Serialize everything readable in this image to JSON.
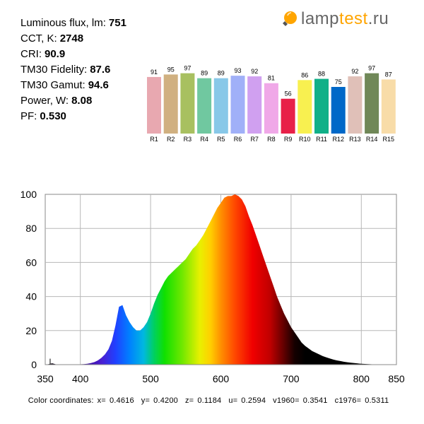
{
  "params": [
    {
      "label": "Luminous flux, lm:",
      "value": "751"
    },
    {
      "label": "CCT, K:",
      "value": "2748"
    },
    {
      "label": "CRI:",
      "value": "90.9"
    },
    {
      "label": "TM30 Fidelity:",
      "value": "87.6"
    },
    {
      "label": "TM30 Gamut:",
      "value": "94.6"
    },
    {
      "label": "Power, W:",
      "value": "8.08"
    },
    {
      "label": "PF:",
      "value": "0.530"
    }
  ],
  "logo": {
    "text_a": "lamp",
    "text_b": "test",
    "text_c": ".ru",
    "icon": "lightbulb-icon",
    "colors": {
      "accent": "#ffa500",
      "text": "#666666"
    }
  },
  "chart_data": [
    {
      "type": "bar",
      "categories": [
        "R1",
        "R2",
        "R3",
        "R4",
        "R5",
        "R6",
        "R7",
        "R8",
        "R9",
        "R10",
        "R11",
        "R12",
        "R13",
        "R14",
        "R15"
      ],
      "values": [
        91,
        95,
        97,
        89,
        89,
        93,
        92,
        81,
        56,
        86,
        88,
        75,
        92,
        97,
        87
      ],
      "colors": [
        "#e8a8b0",
        "#d0b080",
        "#a8c060",
        "#70c8a0",
        "#88c8e8",
        "#a0b0f8",
        "#d0a0f0",
        "#f0a8e8",
        "#e82048",
        "#f8f050",
        "#10b088",
        "#0068c8",
        "#e0c0b8",
        "#708858",
        "#f8dca8"
      ],
      "ylim": [
        0,
        100
      ],
      "data_labels": true
    },
    {
      "type": "area",
      "x": [
        350,
        355,
        360,
        365,
        370,
        375,
        380,
        385,
        390,
        395,
        400,
        405,
        410,
        415,
        420,
        425,
        430,
        435,
        440,
        445,
        450,
        455,
        460,
        465,
        470,
        475,
        480,
        485,
        490,
        495,
        500,
        505,
        510,
        515,
        520,
        525,
        530,
        535,
        540,
        545,
        550,
        555,
        560,
        565,
        570,
        575,
        580,
        585,
        590,
        595,
        600,
        605,
        610,
        615,
        620,
        625,
        630,
        635,
        640,
        645,
        650,
        655,
        660,
        665,
        670,
        675,
        680,
        685,
        690,
        695,
        700,
        705,
        710,
        715,
        720,
        725,
        730,
        735,
        740,
        745,
        750,
        755,
        760,
        765,
        770,
        775,
        780,
        785,
        790,
        795,
        800,
        805,
        810,
        815,
        820,
        825,
        830,
        835,
        840,
        845,
        850
      ],
      "y": [
        0,
        0.3,
        0.8,
        0.2,
        0.1,
        0,
        0,
        0,
        0,
        0,
        0.2,
        0.3,
        0.5,
        0.9,
        1.5,
        2.5,
        4,
        6,
        9,
        14,
        23,
        34,
        35,
        29,
        25,
        22,
        20,
        20,
        22,
        25,
        30,
        36,
        41,
        45,
        49,
        52,
        54,
        56,
        58,
        60,
        62,
        65,
        68,
        70,
        73,
        76,
        80,
        84,
        88,
        92,
        95,
        98,
        99,
        99,
        100,
        99,
        97,
        93,
        87,
        82,
        76,
        70,
        64,
        58,
        52,
        46,
        40,
        35,
        30,
        26,
        22,
        19,
        16,
        13,
        11,
        9.5,
        8,
        7,
        6,
        5,
        4.3,
        3.6,
        3,
        2.5,
        2.1,
        1.7,
        1.4,
        1.1,
        0.9,
        0.7,
        0.5,
        0.4,
        0.3,
        0.2,
        0.15,
        0.1,
        0.08,
        0.05,
        0.03,
        0.02,
        0
      ],
      "xticks": [
        350,
        400,
        500,
        600,
        700,
        800,
        850
      ],
      "yticks": [
        0,
        20,
        40,
        60,
        80,
        100
      ],
      "xlim": [
        350,
        850
      ],
      "ylim": [
        0,
        100
      ],
      "grid": true
    }
  ],
  "coordinates": [
    {
      "label": "x=",
      "value": "0.4616"
    },
    {
      "label": "y=",
      "value": "0.4200"
    },
    {
      "label": "z=",
      "value": "0.1184"
    },
    {
      "label": "u=",
      "value": "0.2594"
    },
    {
      "label": "v1960=",
      "value": "0.3541"
    },
    {
      "label": "c1976=",
      "value": "0.5311"
    }
  ],
  "coordinates_prefix": "Color coordinates:"
}
